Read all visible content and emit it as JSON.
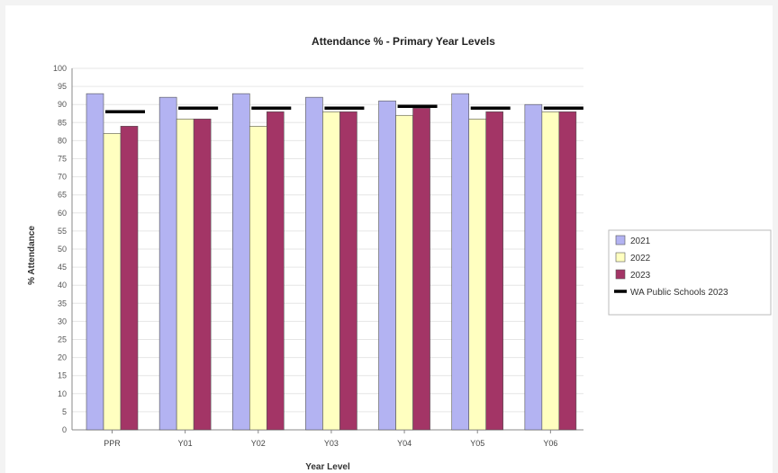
{
  "chart_data": {
    "type": "bar",
    "title": "Attendance % - Primary Year Levels",
    "xlabel": "Year Level",
    "ylabel": "% Attendance",
    "categories": [
      "PPR",
      "Y01",
      "Y02",
      "Y03",
      "Y04",
      "Y05",
      "Y06"
    ],
    "ylim": [
      0,
      100
    ],
    "ytick_step": 5,
    "grid": true,
    "legend_position": "right",
    "series": [
      {
        "name": "2021",
        "color": "#b3b3f2",
        "values": [
          93,
          92,
          93,
          92,
          91,
          93,
          90
        ]
      },
      {
        "name": "2022",
        "color": "#ffffc0",
        "values": [
          82,
          86,
          84,
          88,
          87,
          86,
          88
        ]
      },
      {
        "name": "2023",
        "color": "#a33566",
        "values": [
          84,
          86,
          88,
          88,
          89,
          88,
          88
        ]
      }
    ],
    "reference": {
      "name": "WA Public Schools 2023",
      "color": "#000000",
      "values": [
        88,
        89,
        89,
        89,
        89.5,
        89,
        89
      ]
    }
  }
}
